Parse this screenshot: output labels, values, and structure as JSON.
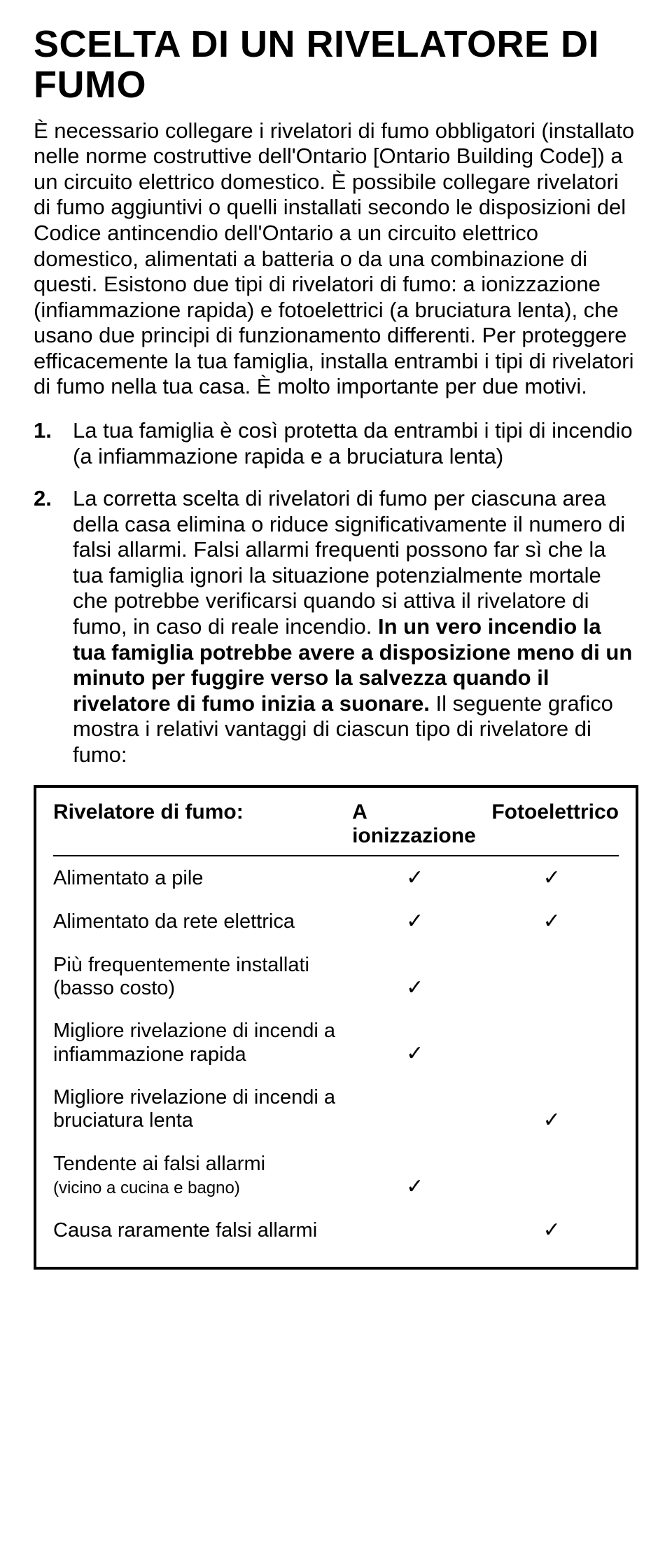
{
  "title": "SCELTA DI UN RIVELATORE DI FUMO",
  "intro": "È necessario collegare i rivelatori di fumo obbligatori (installato nelle norme costruttive dell'Ontario [Ontario Building Code]) a un circuito elettrico domestico. È possibile collegare rivelatori di fumo aggiuntivi o quelli installati secondo le disposizioni del Codice antincendio dell'Ontario a un circuito elettrico domestico, alimentati a batteria o da una combinazione di questi. Esistono due tipi di rivelatori di fumo: a ionizzazione (infiammazione rapida) e fotoelettrici (a bruciatura lenta), che usano due principi di funzionamento differenti. Per proteggere efficacemente la tua famiglia, installa entrambi i tipi di rivelatori di fumo nella tua casa. È molto importante per due motivi.",
  "list": {
    "item1": {
      "num": "1.",
      "text": "La tua famiglia è così protetta da entrambi i tipi di incendio (a infiammazione rapida e a bruciatura lenta)"
    },
    "item2": {
      "num": "2.",
      "part1": "La corretta scelta di rivelatori di fumo per ciascuna area della casa elimina o riduce significativamente il numero di falsi allarmi. Falsi allarmi frequenti possono far sì che la tua famiglia ignori la situazione potenzialmente mortale che potrebbe verificarsi quando si attiva il rivelatore di fumo, in caso di reale incendio. ",
      "bold": "In un vero incendio la tua famiglia potrebbe avere a disposizione meno di un minuto per fuggire verso la salvezza quando il rivelatore di fumo inizia a suonare.",
      "part2": " Il seguente grafico mostra i relativi vantaggi di ciascun tipo di rivelatore di fumo:"
    }
  },
  "table": {
    "header": {
      "col1": "Rivelatore di fumo:",
      "col2": "A ionizzazione",
      "col3": "Fotoelettrico"
    },
    "check": "✓",
    "rows": [
      {
        "label": "Alimentato a pile",
        "sub": "",
        "ion": true,
        "pho": true
      },
      {
        "label": "Alimentato da rete elettrica",
        "sub": "",
        "ion": true,
        "pho": true
      },
      {
        "label": "Più frequentemente installati (basso costo)",
        "sub": "",
        "ion": true,
        "pho": false
      },
      {
        "label": "Migliore rivelazione di incendi a infiammazione rapida",
        "sub": "",
        "ion": true,
        "pho": false
      },
      {
        "label": "Migliore rivelazione di incendi a bruciatura lenta",
        "sub": "",
        "ion": false,
        "pho": true
      },
      {
        "label": "Tendente ai falsi allarmi",
        "sub": "(vicino a cucina e bagno)",
        "ion": true,
        "pho": false
      },
      {
        "label": "Causa raramente falsi allarmi",
        "sub": "",
        "ion": false,
        "pho": true
      }
    ]
  }
}
